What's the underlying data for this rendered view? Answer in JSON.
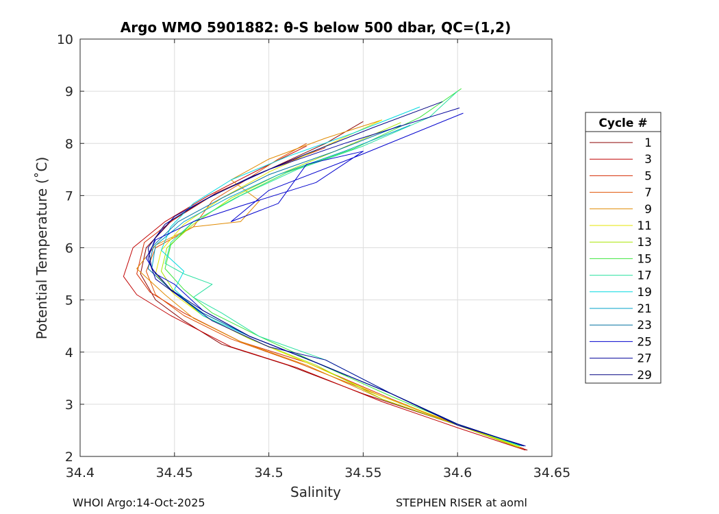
{
  "chart_data": {
    "type": "line",
    "title": "Argo WMO 5901882: θ-S below 500 dbar,  QC=(1,2)",
    "xlabel": "Salinity",
    "ylabel": "Potential Temperature (˚C)",
    "xlim": [
      34.4,
      34.65
    ],
    "ylim": [
      2,
      10
    ],
    "xticks": [
      34.4,
      34.45,
      34.5,
      34.55,
      34.6,
      34.65
    ],
    "xtick_labels": [
      "34.4",
      "34.45",
      "34.5",
      "34.55",
      "34.6",
      "34.65"
    ],
    "yticks": [
      2,
      3,
      4,
      5,
      6,
      7,
      8,
      9,
      10
    ],
    "ytick_labels": [
      "2",
      "3",
      "4",
      "5",
      "6",
      "7",
      "8",
      "9",
      "10"
    ],
    "grid": true,
    "legend": {
      "title": "Cycle #",
      "placement": "right",
      "entries": [
        {
          "label": "1",
          "color": "#8b0000"
        },
        {
          "label": "3",
          "color": "#c00000"
        },
        {
          "label": "5",
          "color": "#d42a00"
        },
        {
          "label": "7",
          "color": "#e05000"
        },
        {
          "label": "9",
          "color": "#e08a00"
        },
        {
          "label": "11",
          "color": "#e6e600"
        },
        {
          "label": "13",
          "color": "#a8e600"
        },
        {
          "label": "15",
          "color": "#3ce63c"
        },
        {
          "label": "17",
          "color": "#28e0a0"
        },
        {
          "label": "19",
          "color": "#00d8e0"
        },
        {
          "label": "21",
          "color": "#00a0c8"
        },
        {
          "label": "23",
          "color": "#0070a0"
        },
        {
          "label": "25",
          "color": "#0000cd"
        },
        {
          "label": "27",
          "color": "#00009a"
        },
        {
          "label": "29",
          "color": "#000080"
        }
      ]
    },
    "series": [
      {
        "name": "1",
        "color": "#8b0000",
        "x": [
          34.637,
          34.6,
          34.55,
          34.51,
          34.475,
          34.455,
          34.44,
          34.432,
          34.435,
          34.448,
          34.47,
          34.5,
          34.53,
          34.55
        ],
        "y": [
          2.12,
          2.6,
          3.2,
          3.75,
          4.15,
          4.6,
          5.0,
          5.5,
          6.0,
          6.5,
          7.0,
          7.5,
          8.0,
          8.42
        ]
      },
      {
        "name": "3",
        "color": "#c00000",
        "x": [
          34.636,
          34.6,
          34.56,
          34.515,
          34.48,
          34.448,
          34.43,
          34.423,
          34.428,
          34.445,
          34.468,
          34.495,
          34.52
        ],
        "y": [
          2.12,
          2.55,
          3.05,
          3.7,
          4.1,
          4.7,
          5.1,
          5.45,
          6.0,
          6.5,
          7.0,
          7.5,
          7.95
        ]
      },
      {
        "name": "5",
        "color": "#d42a00",
        "x": [
          34.635,
          34.6,
          34.565,
          34.52,
          34.485,
          34.455,
          34.437,
          34.43,
          34.434,
          34.45,
          34.472,
          34.5,
          34.53
        ],
        "y": [
          2.15,
          2.6,
          3.1,
          3.8,
          4.2,
          4.75,
          5.15,
          5.5,
          6.1,
          6.55,
          7.05,
          7.5,
          7.92
        ]
      },
      {
        "name": "7",
        "color": "#e05000",
        "x": [
          34.634,
          34.6,
          34.56,
          34.515,
          34.48,
          34.455,
          34.44,
          34.435,
          34.44,
          34.46,
          34.47,
          34.488,
          34.505,
          34.52
        ],
        "y": [
          2.15,
          2.6,
          3.15,
          3.8,
          4.25,
          4.7,
          5.1,
          5.55,
          6.0,
          6.4,
          6.9,
          7.3,
          7.7,
          8.0
        ]
      },
      {
        "name": "9",
        "color": "#e08a00",
        "x": [
          34.633,
          34.6,
          34.56,
          34.52,
          34.485,
          34.46,
          34.445,
          34.43,
          34.44,
          34.46,
          34.485,
          34.495,
          34.48,
          34.5,
          34.53,
          34.56
        ],
        "y": [
          2.17,
          2.6,
          3.1,
          3.75,
          4.2,
          4.65,
          5.1,
          5.6,
          6.05,
          6.4,
          6.5,
          6.9,
          7.3,
          7.7,
          8.1,
          8.45
        ]
      },
      {
        "name": "11",
        "color": "#e6e600",
        "x": [
          34.633,
          34.6,
          34.56,
          34.52,
          34.49,
          34.465,
          34.45,
          34.44,
          34.443,
          34.455,
          34.475,
          34.5,
          34.53,
          34.56
        ],
        "y": [
          2.18,
          2.62,
          3.15,
          3.8,
          4.25,
          4.7,
          5.1,
          5.5,
          5.95,
          6.45,
          6.95,
          7.45,
          7.95,
          8.45
        ]
      },
      {
        "name": "13",
        "color": "#a8e600",
        "x": [
          34.632,
          34.6,
          34.56,
          34.525,
          34.49,
          34.465,
          34.45,
          34.443,
          34.446,
          34.46,
          34.48,
          34.505,
          34.535,
          34.57
        ],
        "y": [
          2.18,
          2.6,
          3.1,
          3.75,
          4.25,
          4.7,
          5.15,
          5.55,
          6.0,
          6.45,
          6.95,
          7.4,
          7.85,
          8.4
        ]
      },
      {
        "name": "15",
        "color": "#3ce63c",
        "x": [
          34.633,
          34.6,
          34.565,
          34.525,
          34.495,
          34.47,
          34.455,
          34.445,
          34.448,
          34.46,
          34.482,
          34.51,
          34.545,
          34.58,
          34.602
        ],
        "y": [
          2.2,
          2.62,
          3.15,
          3.8,
          4.3,
          4.75,
          5.2,
          5.6,
          6.05,
          6.5,
          6.95,
          7.45,
          7.9,
          8.5,
          9.05
        ]
      },
      {
        "name": "17",
        "color": "#28e0a0",
        "x": [
          34.634,
          34.6,
          34.565,
          34.53,
          34.495,
          34.475,
          34.46,
          34.47,
          34.455,
          34.445,
          34.448,
          34.46,
          34.485,
          34.515,
          34.55,
          34.585,
          34.6
        ],
        "y": [
          2.2,
          2.62,
          3.2,
          3.85,
          4.3,
          4.75,
          5.05,
          5.3,
          5.5,
          5.7,
          6.1,
          6.5,
          7.0,
          7.5,
          7.95,
          8.5,
          9.0
        ]
      },
      {
        "name": "19",
        "color": "#00d8e0",
        "x": [
          34.634,
          34.6,
          34.565,
          34.525,
          34.49,
          34.465,
          34.45,
          34.455,
          34.443,
          34.448,
          34.46,
          34.48,
          34.51,
          34.545,
          34.58
        ],
        "y": [
          2.2,
          2.62,
          3.2,
          3.8,
          4.3,
          4.7,
          5.2,
          5.55,
          5.95,
          6.4,
          6.85,
          7.3,
          7.75,
          8.2,
          8.7
        ]
      },
      {
        "name": "21",
        "color": "#00a0c8",
        "x": [
          34.635,
          34.6,
          34.565,
          34.525,
          34.49,
          34.465,
          34.448,
          34.438,
          34.44,
          34.455,
          34.478,
          34.505,
          34.54,
          34.575
        ],
        "y": [
          2.2,
          2.62,
          3.2,
          3.8,
          4.3,
          4.75,
          5.2,
          5.6,
          6.05,
          6.5,
          6.95,
          7.4,
          7.85,
          8.35
        ]
      },
      {
        "name": "23",
        "color": "#0070a0",
        "x": [
          34.635,
          34.6,
          34.565,
          34.525,
          34.49,
          34.465,
          34.448,
          34.436,
          34.439,
          34.452,
          34.475,
          34.5,
          34.535,
          34.57
        ],
        "y": [
          2.2,
          2.62,
          3.2,
          3.8,
          4.3,
          4.75,
          5.2,
          5.6,
          6.05,
          6.5,
          6.95,
          7.4,
          7.85,
          8.35
        ]
      },
      {
        "name": "25",
        "color": "#0000cd",
        "x": [
          34.636,
          34.6,
          34.565,
          34.525,
          34.49,
          34.465,
          34.45,
          34.44,
          34.435,
          34.44,
          34.46,
          34.485,
          34.525,
          34.55,
          34.52,
          34.505,
          34.48,
          34.5,
          34.55,
          34.603
        ],
        "y": [
          2.2,
          2.6,
          3.2,
          3.8,
          4.3,
          4.8,
          5.3,
          5.5,
          5.8,
          6.15,
          6.5,
          6.8,
          7.25,
          7.85,
          7.6,
          6.85,
          6.5,
          7.1,
          7.8,
          8.58
        ]
      },
      {
        "name": "27",
        "color": "#00009a",
        "x": [
          34.636,
          34.6,
          34.565,
          34.53,
          34.5,
          34.47,
          34.455,
          34.44,
          34.436,
          34.44,
          34.45,
          34.47,
          34.5,
          34.54,
          34.601
        ],
        "y": [
          2.2,
          2.6,
          3.2,
          3.85,
          4.1,
          4.6,
          5.0,
          5.4,
          5.8,
          6.2,
          6.6,
          7.0,
          7.5,
          8.0,
          8.68
        ]
      },
      {
        "name": "29",
        "color": "#000080",
        "x": [
          34.635,
          34.6,
          34.565,
          34.525,
          34.49,
          34.465,
          34.448,
          34.438,
          34.436,
          34.445,
          34.465,
          34.49,
          34.52,
          34.555,
          34.592
        ],
        "y": [
          2.2,
          2.62,
          3.2,
          3.8,
          4.3,
          4.8,
          5.2,
          5.6,
          6.0,
          6.45,
          6.9,
          7.35,
          7.8,
          8.3,
          8.8
        ]
      }
    ]
  },
  "footer": {
    "left": "WHOI Argo:14-Oct-2025",
    "right": "STEPHEN RISER at aoml"
  }
}
